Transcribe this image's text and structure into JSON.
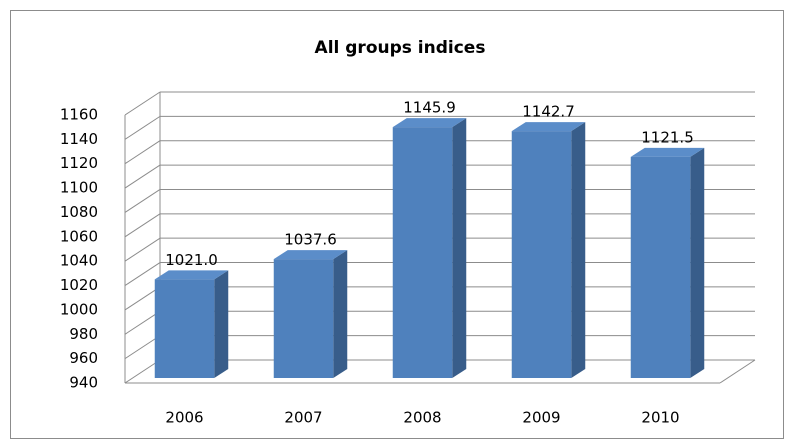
{
  "chart_data": {
    "type": "bar",
    "title": "All groups indices",
    "categories": [
      "2006",
      "2007",
      "2008",
      "2009",
      "2010"
    ],
    "values": [
      1021.0,
      1037.6,
      1145.9,
      1142.7,
      1121.5
    ],
    "value_labels": [
      "1021.0",
      "1037.6",
      "1145.9",
      "1142.7",
      "1121.5"
    ],
    "color": "#4f81bd",
    "ylim": [
      940,
      1160
    ],
    "yticks": [
      940,
      960,
      980,
      1000,
      1020,
      1040,
      1060,
      1080,
      1100,
      1120,
      1140,
      1160
    ],
    "grid": true
  }
}
